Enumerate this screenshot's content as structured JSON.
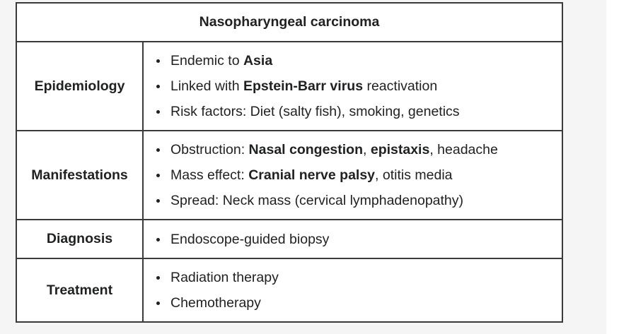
{
  "table": {
    "title": "Nasopharyngeal carcinoma",
    "rows": [
      {
        "label": "Epidemiology",
        "items": [
          [
            {
              "t": "Endemic to ",
              "b": false
            },
            {
              "t": "Asia",
              "b": true
            }
          ],
          [
            {
              "t": "Linked with ",
              "b": false
            },
            {
              "t": "Epstein-Barr virus",
              "b": true
            },
            {
              "t": " reactivation",
              "b": false
            }
          ],
          [
            {
              "t": "Risk factors: Diet (salty fish), smoking, genetics",
              "b": false
            }
          ]
        ]
      },
      {
        "label": "Manifestations",
        "items": [
          [
            {
              "t": "Obstruction: ",
              "b": false
            },
            {
              "t": "Nasal congestion",
              "b": true
            },
            {
              "t": ", ",
              "b": false
            },
            {
              "t": "epistaxis",
              "b": true
            },
            {
              "t": ", headache",
              "b": false
            }
          ],
          [
            {
              "t": "Mass effect: ",
              "b": false
            },
            {
              "t": "Cranial nerve palsy",
              "b": true
            },
            {
              "t": ", otitis media",
              "b": false
            }
          ],
          [
            {
              "t": "Spread: Neck mass (cervical lymphadenopathy)",
              "b": false
            }
          ]
        ]
      },
      {
        "label": "Diagnosis",
        "items": [
          [
            {
              "t": "Endoscope-guided biopsy",
              "b": false
            }
          ]
        ]
      },
      {
        "label": "Treatment",
        "items": [
          [
            {
              "t": "Radiation therapy",
              "b": false
            }
          ],
          [
            {
              "t": "Chemotherapy",
              "b": false
            }
          ]
        ]
      }
    ]
  }
}
